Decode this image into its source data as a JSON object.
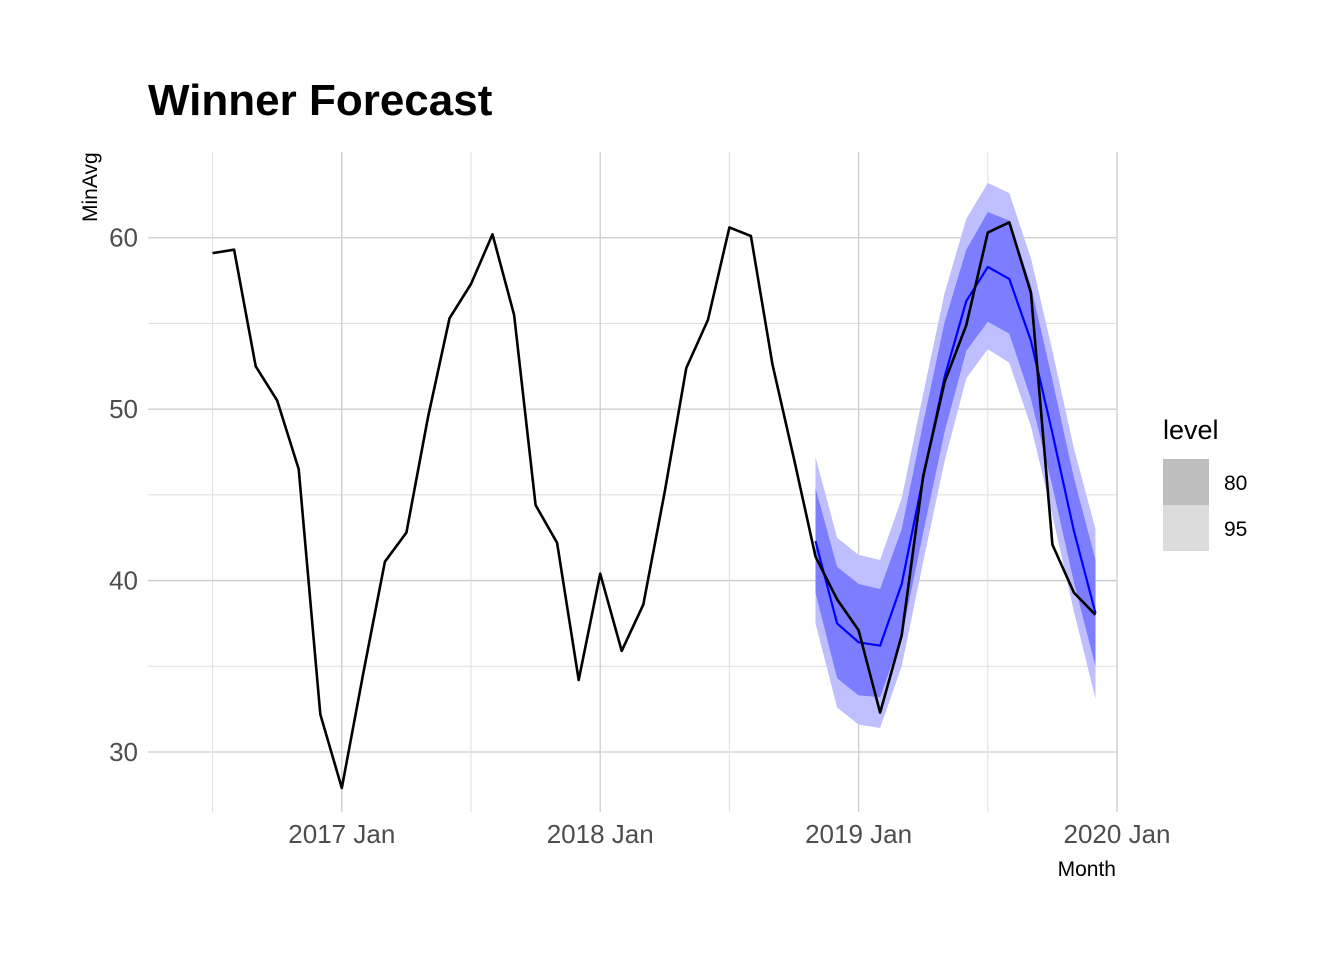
{
  "chart_data": {
    "type": "line",
    "title": "Winner Forecast",
    "xlabel": "Month",
    "ylabel": "MinAvg",
    "x_ticks": [
      "2017 Jan",
      "2018 Jan",
      "2019 Jan",
      "2020 Jan"
    ],
    "y_ticks": [
      30,
      40,
      50,
      60
    ],
    "ylim": [
      26.5,
      65
    ],
    "xlim": [
      "2016-04",
      "2020-01"
    ],
    "grid": true,
    "legend": {
      "title": "level",
      "position": "right",
      "entries": [
        {
          "label": "80",
          "color": "#bebebe"
        },
        {
          "label": "95",
          "color": "#dcdcdc"
        }
      ]
    },
    "colors": {
      "history": "#000000",
      "forecast": "#0000ff",
      "band80": "#7d7dff",
      "band95": "#bfbfff"
    },
    "history": {
      "x": [
        "2016-07",
        "2016-08",
        "2016-09",
        "2016-10",
        "2016-11",
        "2016-12",
        "2017-01",
        "2017-02",
        "2017-03",
        "2017-04",
        "2017-05",
        "2017-06",
        "2017-07",
        "2017-08",
        "2017-09",
        "2017-10",
        "2017-11",
        "2017-12",
        "2018-01",
        "2018-02",
        "2018-03",
        "2018-04",
        "2018-05",
        "2018-06",
        "2018-07",
        "2018-08",
        "2018-09",
        "2018-10",
        "2018-11",
        "2018-12",
        "2019-01",
        "2019-02",
        "2019-03",
        "2019-04",
        "2019-05",
        "2019-06",
        "2019-07",
        "2019-08",
        "2019-09",
        "2019-10",
        "2019-11",
        "2019-12"
      ],
      "y": [
        59.1,
        59.3,
        52.5,
        50.5,
        46.5,
        32.2,
        27.9,
        34.6,
        41.1,
        42.8,
        49.5,
        55.3,
        57.3,
        60.2,
        55.5,
        44.4,
        42.2,
        34.2,
        40.4,
        35.9,
        38.6,
        45.2,
        52.4,
        55.2,
        60.6,
        60.1,
        52.6,
        47.1,
        41.4,
        38.9,
        37.1,
        32.3,
        36.8,
        46.1,
        51.6,
        54.9,
        60.3,
        60.9,
        56.8,
        42.1,
        39.3,
        38.0
      ]
    },
    "forecast": {
      "x": [
        "2018-11",
        "2018-12",
        "2019-01",
        "2019-02",
        "2019-03",
        "2019-04",
        "2019-05",
        "2019-06",
        "2019-07",
        "2019-08",
        "2019-09",
        "2019-10",
        "2019-11",
        "2019-12"
      ],
      "mean": [
        42.3,
        37.5,
        36.4,
        36.2,
        39.8,
        46.0,
        51.9,
        56.3,
        58.3,
        57.6,
        54.0,
        48.6,
        42.9,
        38.1
      ],
      "lo80": [
        39.3,
        34.3,
        33.3,
        33.2,
        36.7,
        42.8,
        48.7,
        53.4,
        55.1,
        54.4,
        50.6,
        45.5,
        39.9,
        35.0
      ],
      "hi80": [
        45.4,
        40.8,
        39.8,
        39.5,
        43.0,
        49.2,
        55.1,
        59.3,
        61.5,
        61.0,
        57.2,
        51.7,
        46.0,
        41.2
      ],
      "lo95": [
        37.5,
        32.6,
        31.6,
        31.4,
        35.0,
        41.1,
        47.0,
        51.8,
        53.5,
        52.7,
        49.0,
        43.8,
        38.2,
        33.1
      ],
      "hi95": [
        47.2,
        42.5,
        41.5,
        41.2,
        44.8,
        50.9,
        56.8,
        61.1,
        63.2,
        62.6,
        58.8,
        53.4,
        47.7,
        43.0
      ]
    }
  }
}
